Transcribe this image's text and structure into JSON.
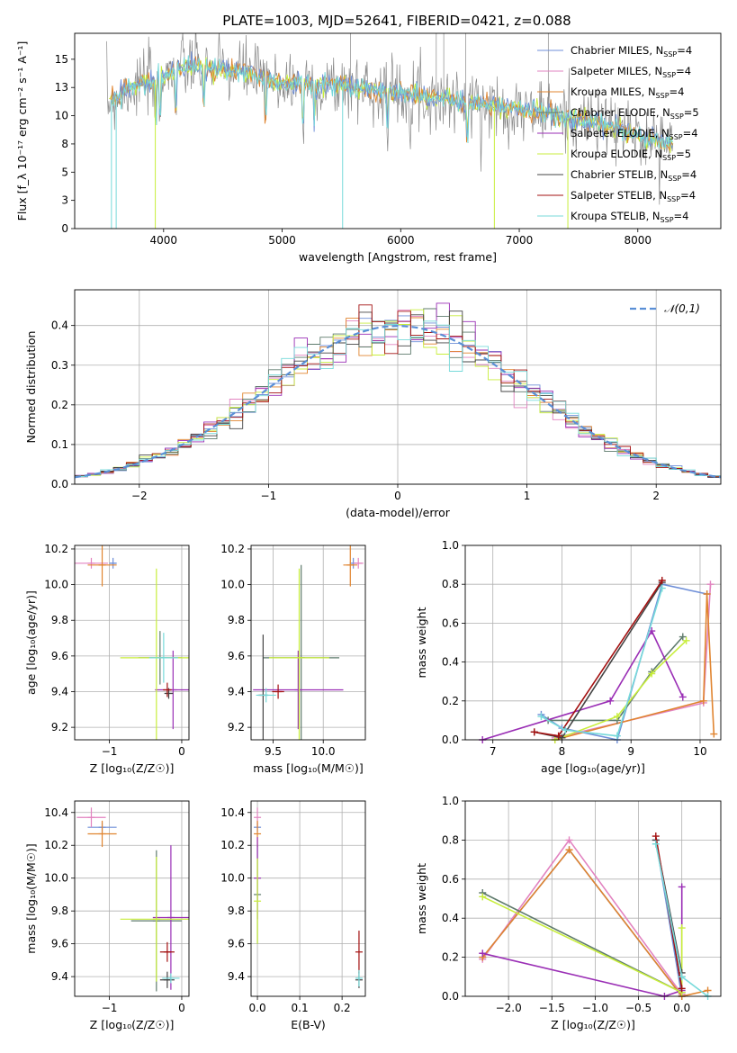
{
  "figure_title": "PLATE=1003, MJD=52641, FIBERID=0421, z=0.088",
  "series": [
    {
      "name": "Chabrier MILES",
      "nssp": "4",
      "color": "#6f8fd8"
    },
    {
      "name": "Salpeter MILES",
      "nssp": "4",
      "color": "#e283c0"
    },
    {
      "name": "Kroupa MILES",
      "nssp": "4",
      "color": "#e0842f"
    },
    {
      "name": "Chabrier ELODIE",
      "nssp": "5",
      "color": "#5f7b6d"
    },
    {
      "name": "Salpeter ELODIE",
      "nssp": "4",
      "color": "#9a2eb5"
    },
    {
      "name": "Kroupa ELODIE",
      "nssp": "5",
      "color": "#c8ee3c"
    },
    {
      "name": "Chabrier STELIB",
      "nssp": "4",
      "color": "#444444"
    },
    {
      "name": "Salpeter STELIB",
      "nssp": "4",
      "color": "#a31010"
    },
    {
      "name": "Kroupa STELIB",
      "nssp": "4",
      "color": "#77dada"
    }
  ],
  "chart_data": [
    {
      "id": "spectrum",
      "type": "line",
      "xlabel": "wavelength [Angstrom, rest frame]",
      "ylabel": "Flux [f_λ 10⁻¹⁷ erg cm⁻² s⁻¹ A⁻¹]",
      "xlim": [
        3250,
        8700
      ],
      "ylim": [
        0,
        17.3
      ],
      "xticks": [
        4000,
        5000,
        6000,
        7000,
        8000
      ],
      "yticks": [
        0.0,
        2.5,
        5.0,
        7.5,
        10.0,
        12.5,
        15.0
      ],
      "grid": false,
      "legend": "top-right",
      "x": [
        3500,
        3700,
        3900,
        4100,
        4300,
        4500,
        4700,
        4900,
        5100,
        5300,
        5500,
        5700,
        5900,
        6100,
        6300,
        6500,
        6700,
        6900,
        7100,
        7300,
        7500,
        7700,
        7900,
        8100,
        8300
      ],
      "y": [
        11.0,
        12.4,
        13.0,
        14.2,
        14.4,
        14.0,
        13.9,
        13.0,
        12.9,
        12.7,
        12.6,
        12.5,
        12.2,
        11.9,
        11.6,
        11.3,
        11.0,
        10.7,
        10.4,
        10.1,
        9.6,
        9.2,
        8.6,
        8.0,
        7.5
      ]
    },
    {
      "id": "residuals",
      "type": "histogram",
      "xlabel": "(data-model)/error",
      "ylabel": "Normed distribution",
      "xlim": [
        -2.5,
        2.5
      ],
      "ylim": [
        0,
        0.49
      ],
      "xticks": [
        -2,
        -1,
        0,
        1,
        2
      ],
      "yticks": [
        0.0,
        0.1,
        0.2,
        0.3,
        0.4
      ],
      "grid": true,
      "legend": "top-right",
      "legend_label": "𝒩(0,1)",
      "reference_curve": "normal(0,1)",
      "bin_width": 0.1,
      "bin_start": -2.5
    },
    {
      "id": "age-z",
      "type": "errorbar",
      "xlabel": "Z [log₁₀(Z/Z☉)]",
      "ylabel": "age  [log₁₀(age/yr)]",
      "xlim": [
        -1.48,
        0.1
      ],
      "ylim": [
        9.13,
        10.22
      ],
      "xticks": [
        -1,
        0
      ],
      "yticks": [
        9.2,
        9.4,
        9.6,
        9.8,
        10.0,
        10.2
      ],
      "grid": true,
      "points": [
        {
          "s": 0,
          "x": -0.95,
          "y": 10.12,
          "xerr": 0.05,
          "yerr": 0.03
        },
        {
          "s": 1,
          "x": -1.25,
          "y": 10.12,
          "xerr": 0.23,
          "yerr": 0.03
        },
        {
          "s": 2,
          "x": -1.1,
          "y": 10.11,
          "xerr": 0.2,
          "yerr": 0.12
        },
        {
          "s": 3,
          "x": -0.3,
          "y": 9.59,
          "xerr": 0.3,
          "yerr": 0.15
        },
        {
          "s": 4,
          "x": -0.12,
          "y": 9.41,
          "xerr": 0.25,
          "yerr": 0.22
        },
        {
          "s": 5,
          "x": -0.35,
          "y": 9.59,
          "xerr": 0.5,
          "yerr": 0.5
        },
        {
          "s": 6,
          "x": -0.18,
          "y": 9.39,
          "xerr": 0.06,
          "yerr": 0.03
        },
        {
          "s": 7,
          "x": -0.2,
          "y": 9.41,
          "xerr": 0.06,
          "yerr": 0.04
        },
        {
          "s": 8,
          "x": -0.25,
          "y": 9.59,
          "xerr": 0.2,
          "yerr": 0.14
        }
      ]
    },
    {
      "id": "age-mass",
      "type": "errorbar",
      "xlabel": "mass [log₁₀(M/M☉)]",
      "ylabel": "",
      "xlim": [
        9.28,
        10.42
      ],
      "ylim": [
        9.13,
        10.22
      ],
      "xticks": [
        9.5,
        10.0
      ],
      "yticks": [
        9.2,
        9.4,
        9.6,
        9.8,
        10.0,
        10.2
      ],
      "grid": true,
      "points": [
        {
          "s": 0,
          "x": 10.3,
          "y": 10.12,
          "xerr": 0.02,
          "yerr": 0.03
        },
        {
          "s": 1,
          "x": 10.35,
          "y": 10.12,
          "xerr": 0.05,
          "yerr": 0.03
        },
        {
          "s": 2,
          "x": 10.27,
          "y": 10.11,
          "xerr": 0.07,
          "yerr": 0.12
        },
        {
          "s": 3,
          "x": 9.78,
          "y": 9.59,
          "xerr": 0.38,
          "yerr": 0.52
        },
        {
          "s": 4,
          "x": 9.75,
          "y": 9.41,
          "xerr": 0.45,
          "yerr": 0.22
        },
        {
          "s": 5,
          "x": 9.76,
          "y": 9.59,
          "xerr": 0.3,
          "yerr": 0.5
        },
        {
          "s": 6,
          "x": 9.4,
          "y": 9.38,
          "xerr": 0.05,
          "yerr": 0.34
        },
        {
          "s": 7,
          "x": 9.55,
          "y": 9.4,
          "xerr": 0.06,
          "yerr": 0.04
        },
        {
          "s": 8,
          "x": 9.43,
          "y": 9.38,
          "xerr": 0.1,
          "yerr": 0.04
        }
      ]
    },
    {
      "id": "massweight-age",
      "type": "line",
      "xlabel": "age  [log₁₀(age/yr)]",
      "ylabel": "mass weight",
      "xlim": [
        6.6,
        10.3
      ],
      "ylim": [
        0,
        1.0
      ],
      "xticks": [
        7,
        8,
        9,
        10
      ],
      "yticks": [
        0.0,
        0.2,
        0.4,
        0.6,
        0.8,
        1.0
      ],
      "grid": true,
      "series_points": [
        {
          "s": 0,
          "x": [
            7.7,
            8.0,
            8.8,
            9.45,
            10.1
          ],
          "y": [
            0.13,
            0.06,
            0.0,
            0.8,
            0.75
          ]
        },
        {
          "s": 1,
          "x": [
            7.9,
            10.05,
            10.15
          ],
          "y": [
            0.01,
            0.19,
            0.8
          ]
        },
        {
          "s": 2,
          "x": [
            7.9,
            10.05,
            10.1,
            10.2
          ],
          "y": [
            0.0,
            0.2,
            0.75,
            0.03
          ]
        },
        {
          "s": 3,
          "x": [
            7.8,
            8.8,
            9.3,
            9.75
          ],
          "y": [
            0.1,
            0.1,
            0.35,
            0.53
          ]
        },
        {
          "s": 4,
          "x": [
            6.85,
            8.7,
            9.3,
            9.75
          ],
          "y": [
            0.0,
            0.2,
            0.56,
            0.22
          ]
        },
        {
          "s": 5,
          "x": [
            7.9,
            8.8,
            9.3,
            9.8
          ],
          "y": [
            0.0,
            0.12,
            0.34,
            0.51
          ]
        },
        {
          "s": 6,
          "x": [
            7.6,
            8.0,
            9.45
          ],
          "y": [
            0.04,
            0.01,
            0.81
          ]
        },
        {
          "s": 7,
          "x": [
            7.6,
            7.95,
            9.45
          ],
          "y": [
            0.04,
            0.02,
            0.82
          ]
        },
        {
          "s": 8,
          "x": [
            7.7,
            8.05,
            8.8,
            9.45
          ],
          "y": [
            0.12,
            0.05,
            0.02,
            0.78
          ]
        }
      ]
    },
    {
      "id": "mass-z",
      "type": "errorbar",
      "xlabel": "Z [log₁₀(Z/Z☉)]",
      "ylabel": "mass [log₁₀(M/M☉)]",
      "xlim": [
        -1.48,
        0.1
      ],
      "ylim": [
        9.28,
        10.47
      ],
      "xticks": [
        -1,
        0
      ],
      "yticks": [
        9.4,
        9.6,
        9.8,
        10.0,
        10.2,
        10.4
      ],
      "grid": true,
      "points": [
        {
          "s": 0,
          "x": -1.1,
          "y": 10.31,
          "xerr": 0.2,
          "yerr": 0.03
        },
        {
          "s": 1,
          "x": -1.25,
          "y": 10.37,
          "xerr": 0.2,
          "yerr": 0.06
        },
        {
          "s": 2,
          "x": -1.1,
          "y": 10.27,
          "xerr": 0.2,
          "yerr": 0.08
        },
        {
          "s": 3,
          "x": -0.35,
          "y": 9.74,
          "xerr": 0.35,
          "yerr": 0.43
        },
        {
          "s": 4,
          "x": -0.15,
          "y": 9.76,
          "xerr": 0.25,
          "yerr": 0.44
        },
        {
          "s": 5,
          "x": -0.35,
          "y": 9.75,
          "xerr": 0.5,
          "yerr": 0.38
        },
        {
          "s": 6,
          "x": -0.2,
          "y": 9.38,
          "xerr": 0.1,
          "yerr": 0.05
        },
        {
          "s": 7,
          "x": -0.2,
          "y": 9.55,
          "xerr": 0.1,
          "yerr": 0.06
        },
        {
          "s": 8,
          "x": -0.15,
          "y": 9.39,
          "xerr": 0.12,
          "yerr": 0.03
        }
      ]
    },
    {
      "id": "mass-ebv",
      "type": "errorbar",
      "xlabel": "E(B-V)",
      "ylabel": "",
      "xlim": [
        -0.015,
        0.255
      ],
      "ylim": [
        9.28,
        10.47
      ],
      "xticks": [
        0.0,
        0.1,
        0.2
      ],
      "yticks": [
        9.4,
        9.6,
        9.8,
        10.0,
        10.2,
        10.4
      ],
      "grid": true,
      "points": [
        {
          "s": 0,
          "x": 0.0,
          "y": 10.31,
          "xerr": 0.0,
          "yerr": 0.03
        },
        {
          "s": 1,
          "x": 0.0,
          "y": 10.37,
          "xerr": 0.0,
          "yerr": 0.06
        },
        {
          "s": 2,
          "x": 0.0,
          "y": 10.27,
          "xerr": 0.0,
          "yerr": 0.08
        },
        {
          "s": 3,
          "x": 0.0,
          "y": 9.9,
          "xerr": 0.0,
          "yerr": 0.3
        },
        {
          "s": 4,
          "x": 0.0,
          "y": 10.0,
          "xerr": 0.0,
          "yerr": 0.25
        },
        {
          "s": 5,
          "x": 0.0,
          "y": 9.86,
          "xerr": 0.0,
          "yerr": 0.26
        },
        {
          "s": 6,
          "x": 0.24,
          "y": 9.38,
          "xerr": 0.0,
          "yerr": 0.05
        },
        {
          "s": 7,
          "x": 0.24,
          "y": 9.55,
          "xerr": 0.0,
          "yerr": 0.13
        },
        {
          "s": 8,
          "x": 0.24,
          "y": 9.39,
          "xerr": 0.0,
          "yerr": 0.05
        }
      ]
    },
    {
      "id": "massweight-z",
      "type": "line",
      "xlabel": "Z [log₁₀(Z/Z☉)]",
      "ylabel": "mass weight",
      "xlim": [
        -2.5,
        0.45
      ],
      "ylim": [
        0,
        1.0
      ],
      "xticks": [
        -2.0,
        -1.5,
        -1.0,
        -0.5,
        0.0
      ],
      "yticks": [
        0.0,
        0.2,
        0.4,
        0.6,
        0.8,
        1.0
      ],
      "grid": true,
      "series_points": [
        {
          "s": 0,
          "x": [
            -2.3,
            -1.3,
            0.0,
            -0.3
          ],
          "y": [
            0.2,
            0.75,
            0.0,
            0.8
          ]
        },
        {
          "s": 1,
          "x": [
            -2.3,
            -1.3,
            0.0
          ],
          "y": [
            0.19,
            0.8,
            0.01
          ]
        },
        {
          "s": 2,
          "x": [
            -2.3,
            -1.3,
            0.0,
            0.3
          ],
          "y": [
            0.2,
            0.75,
            0.0,
            0.03
          ]
        },
        {
          "s": 3,
          "x": [
            -2.3,
            0.0,
            0.0
          ],
          "y": [
            0.53,
            0.02,
            0.1
          ]
        },
        {
          "s": 4,
          "x": [
            -2.3,
            -0.2,
            0.0,
            0.0
          ],
          "y": [
            0.22,
            0.0,
            0.03,
            0.56
          ]
        },
        {
          "s": 5,
          "x": [
            -2.3,
            0.0,
            0.0
          ],
          "y": [
            0.51,
            0.02,
            0.35
          ]
        },
        {
          "s": 6,
          "x": [
            -0.3,
            0.0
          ],
          "y": [
            0.8,
            0.12
          ]
        },
        {
          "s": 7,
          "x": [
            -0.3,
            0.0
          ],
          "y": [
            0.82,
            0.04
          ]
        },
        {
          "s": 8,
          "x": [
            -0.3,
            0.0,
            0.3
          ],
          "y": [
            0.78,
            0.1,
            0.0
          ]
        }
      ]
    }
  ]
}
